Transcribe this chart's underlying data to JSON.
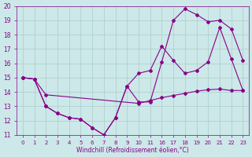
{
  "xlabel": "Windchill (Refroidissement éolien,°C)",
  "bg_color": "#cce8e8",
  "line_color": "#880088",
  "grid_color": "#aacccc",
  "ylim": [
    11,
    20
  ],
  "yticks": [
    11,
    12,
    13,
    14,
    15,
    16,
    17,
    18,
    19,
    20
  ],
  "xtick_labels": [
    "0",
    "1",
    "2",
    "3",
    "4",
    "5",
    "6",
    "7",
    "8",
    "9",
    "10",
    "11",
    "16",
    "17",
    "18",
    "19",
    "20",
    "21",
    "22",
    "23"
  ],
  "line1_x_idx": [
    0,
    1,
    2,
    10,
    11,
    12,
    13,
    14,
    15,
    16,
    17,
    18,
    19
  ],
  "line1_y": [
    15.0,
    14.9,
    13.8,
    13.2,
    13.4,
    13.6,
    13.75,
    13.9,
    14.05,
    14.15,
    14.2,
    14.1,
    14.1
  ],
  "line2_x_idx": [
    0,
    1,
    2,
    3,
    4,
    5,
    6,
    7,
    8,
    9,
    10,
    11,
    12,
    13,
    14,
    15,
    16,
    17,
    18,
    19
  ],
  "line2_y": [
    15.0,
    14.9,
    13.0,
    12.5,
    12.2,
    12.1,
    11.5,
    11.0,
    12.2,
    14.4,
    13.3,
    13.3,
    16.1,
    19.0,
    19.8,
    19.4,
    18.9,
    19.0,
    18.4,
    16.2
  ],
  "line3_x_idx": [
    0,
    1,
    2,
    3,
    4,
    5,
    6,
    7,
    8,
    9,
    10,
    11,
    12,
    13,
    14,
    15,
    16,
    17,
    18,
    19
  ],
  "line3_y": [
    15.0,
    14.9,
    13.0,
    12.5,
    12.2,
    12.1,
    11.5,
    11.0,
    12.2,
    14.4,
    15.3,
    15.5,
    17.2,
    16.2,
    15.3,
    15.5,
    16.1,
    18.5,
    16.3,
    14.1
  ]
}
